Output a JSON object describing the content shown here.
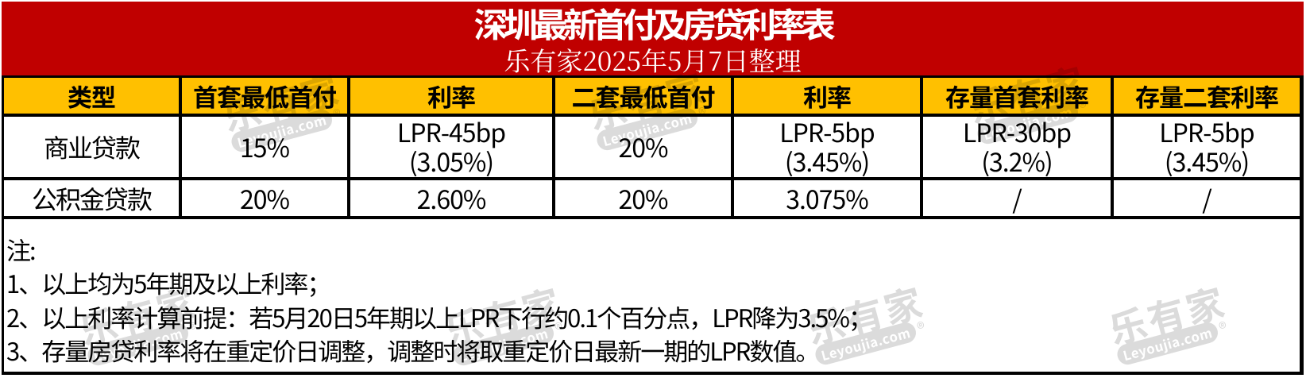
{
  "banner": {
    "title": "深圳最新首付及房贷利率表",
    "subtitle": "乐有家2025年5月7日整理"
  },
  "table": {
    "columns": [
      "类型",
      "首套最低首付",
      "利率",
      "二套最低首付",
      "利率",
      "存量首套利率",
      "存量二套利率"
    ],
    "rows": [
      {
        "type": "商业贷款",
        "cells": [
          "15%",
          "LPR-45bp\n(3.05%)",
          "20%",
          "LPR-5bp\n(3.45%)",
          "LPR-30bp\n(3.2%)",
          "LPR-5bp\n(3.45%)"
        ]
      },
      {
        "type": "公积金贷款",
        "cells": [
          "20%",
          "2.60%",
          "20%",
          "3.075%",
          "/",
          "/"
        ]
      }
    ]
  },
  "notes": {
    "label": "注:",
    "items": [
      "1、以上均为5年期及以上利率；",
      "2、以上利率计算前提：若5月20日5年期以上LPR下行约0.1个百分点，LPR降为3.5%；",
      "3、存量房贷利率将在重定价日调整，调整时将取重定价日最新一期的LPR数值。"
    ]
  },
  "watermark": {
    "brand": "乐有家",
    "domain": "Leyoujia.com",
    "registered": "®"
  },
  "colors": {
    "banner-red": "#C00000",
    "header-gold": "#FFC000",
    "border-black": "#000000",
    "watermark-gray": "#DBDBDB",
    "text-white": "#FFFFFF",
    "text-black": "#000000"
  }
}
